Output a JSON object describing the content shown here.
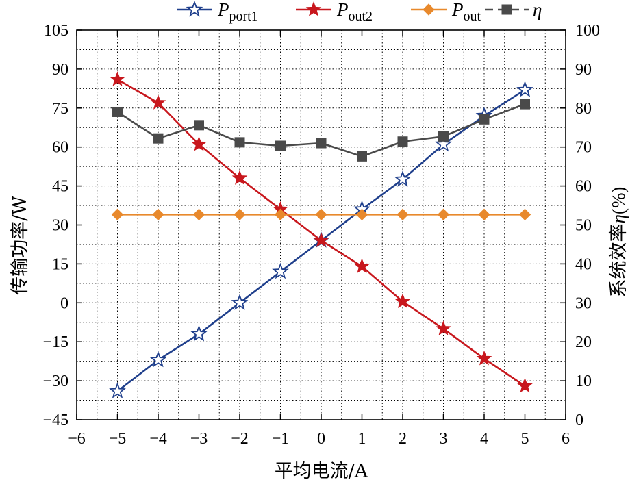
{
  "chart_data": {
    "type": "line",
    "xlabel": "平均电流/A",
    "ylabel_left": "传输功率/W",
    "ylabel_right_prefix": "系统效率",
    "ylabel_right_symbol": "η",
    "ylabel_right_suffix": "(%)",
    "x": [
      -5,
      -4,
      -3,
      -2,
      -1,
      0,
      1,
      2,
      3,
      4,
      5
    ],
    "xlim": [
      -6,
      6
    ],
    "xticks": [
      -6,
      -5,
      -4,
      -3,
      -2,
      -1,
      0,
      1,
      2,
      3,
      4,
      5,
      6
    ],
    "ylim_left": [
      -45,
      105
    ],
    "yticks_left": [
      -45,
      -30,
      -15,
      0,
      15,
      30,
      45,
      60,
      75,
      90,
      105
    ],
    "ylim_right": [
      0,
      100
    ],
    "yticks_right": [
      0,
      10,
      20,
      30,
      40,
      50,
      60,
      70,
      80,
      90,
      100
    ],
    "grid": true,
    "legend_position": "top",
    "series": [
      {
        "name_main": "P",
        "name_sub": "port1",
        "axis": "left",
        "color": "#1f3f8c",
        "marker": "star-open",
        "values": [
          -34,
          -22,
          -12,
          0,
          12,
          24,
          36,
          47.5,
          61,
          72,
          82
        ]
      },
      {
        "name_main": "P",
        "name_sub": "out2",
        "axis": "left",
        "color": "#c8171d",
        "marker": "star-filled",
        "values": [
          86,
          77,
          61,
          48,
          36,
          24,
          14,
          0.5,
          -10,
          -21.5,
          -32
        ]
      },
      {
        "name_main": "P",
        "name_sub": "out",
        "axis": "left",
        "color": "#e8892c",
        "marker": "diamond",
        "values": [
          34,
          34,
          34,
          34,
          34,
          34,
          34,
          34,
          34,
          34,
          34
        ]
      },
      {
        "name_main": "η",
        "name_sub": "",
        "axis": "right",
        "color": "#4a4a4a",
        "marker": "square",
        "dashed": true,
        "values": [
          79,
          72.2,
          75.6,
          71.2,
          70.3,
          71,
          67.6,
          71.4,
          72.7,
          77.1,
          81
        ]
      }
    ]
  }
}
